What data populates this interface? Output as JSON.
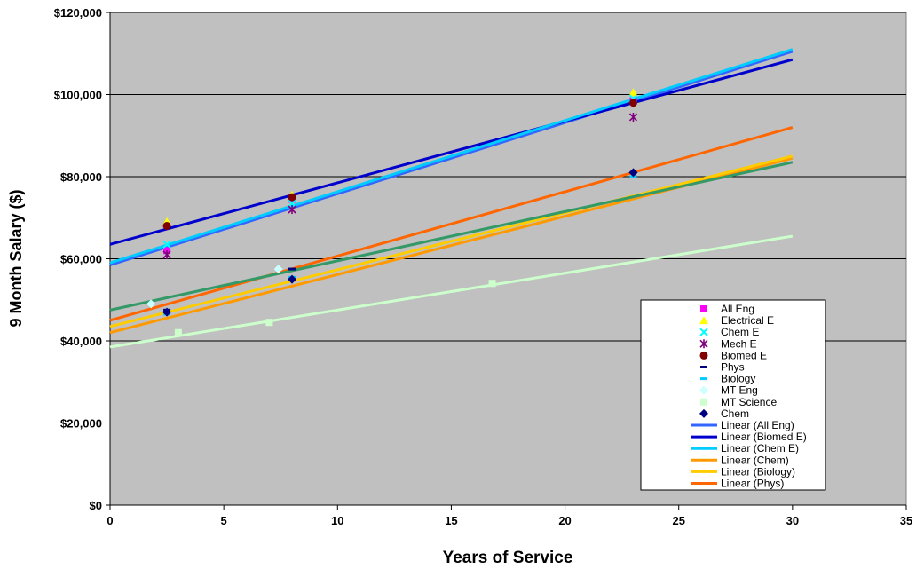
{
  "chart_data": {
    "type": "scatter",
    "title": "",
    "xlabel": "Years of Service",
    "ylabel": "9 Month Salary ($)",
    "xlim": [
      0,
      35
    ],
    "ylim": [
      0,
      120000
    ],
    "x_ticks": [
      0,
      5,
      10,
      15,
      20,
      25,
      30,
      35
    ],
    "y_ticks": [
      0,
      20000,
      40000,
      60000,
      80000,
      100000,
      120000
    ],
    "x_tick_labels": [
      "0",
      "5",
      "10",
      "15",
      "20",
      "25",
      "30",
      "35"
    ],
    "y_tick_labels": [
      "$0",
      "$20,000",
      "$40,000",
      "$60,000",
      "$80,000",
      "$100,000",
      "$120,000"
    ],
    "grid": "horizontal",
    "plot_background": "#c0c0c0",
    "legend_position": "right",
    "series": [
      {
        "name": "All Eng",
        "marker": "square",
        "color": "#ff00ff",
        "points": [
          [
            2.5,
            62000
          ],
          [
            8,
            74500
          ],
          [
            23,
            98500
          ]
        ]
      },
      {
        "name": "Electrical E",
        "marker": "triangle",
        "color": "#ffff00",
        "points": [
          [
            2.5,
            69000
          ],
          [
            8,
            75500
          ],
          [
            23,
            100500
          ]
        ]
      },
      {
        "name": "Chem E",
        "marker": "x",
        "color": "#00ffff",
        "points": [
          [
            2.5,
            63500
          ],
          [
            8,
            73500
          ],
          [
            23,
            99000
          ]
        ]
      },
      {
        "name": "Mech E",
        "marker": "star",
        "color": "#800080",
        "points": [
          [
            2.5,
            61000
          ],
          [
            8,
            72000
          ],
          [
            23,
            94500
          ]
        ]
      },
      {
        "name": "Biomed E",
        "marker": "circle",
        "color": "#800000",
        "points": [
          [
            2.5,
            68000
          ],
          [
            8,
            75000
          ],
          [
            23,
            98000
          ]
        ]
      },
      {
        "name": "Phys",
        "marker": "dash",
        "color": "#000080",
        "points": [
          [
            2.5,
            47500
          ],
          [
            8,
            57500
          ],
          [
            23,
            81000
          ]
        ]
      },
      {
        "name": "Biology",
        "marker": "dash",
        "color": "#00ccff",
        "points": [
          [
            2.5,
            46500
          ],
          [
            8,
            55500
          ],
          [
            23,
            80000
          ]
        ]
      },
      {
        "name": "MT Eng",
        "marker": "diamond",
        "color": "#ccffff",
        "points": [
          [
            1.8,
            49000
          ],
          [
            7.4,
            57500
          ]
        ]
      },
      {
        "name": "MT Science",
        "marker": "square",
        "color": "#ccffcc",
        "points": [
          [
            3,
            42000
          ],
          [
            7,
            44500
          ],
          [
            16.8,
            54000
          ]
        ]
      },
      {
        "name": "Chem",
        "marker": "diamond",
        "color": "#000080",
        "points": [
          [
            2.5,
            47000
          ],
          [
            8,
            55000
          ],
          [
            23,
            81000
          ]
        ]
      }
    ],
    "trendlines": [
      {
        "name": "Linear (All Eng)",
        "color": "#3366ff",
        "x": [
          0,
          30
        ],
        "y": [
          58500,
          110500
        ],
        "in_legend": true
      },
      {
        "name": "Linear (Biomed E)",
        "color": "#0000cc",
        "x": [
          0,
          30
        ],
        "y": [
          63500,
          108500
        ],
        "in_legend": true
      },
      {
        "name": "Linear (Chem E)",
        "color": "#00ccff",
        "x": [
          0,
          30
        ],
        "y": [
          59000,
          111000
        ],
        "in_legend": true
      },
      {
        "name": "Linear (Chem)",
        "color": "#ff9900",
        "x": [
          0,
          30
        ],
        "y": [
          42000,
          84500
        ],
        "in_legend": true
      },
      {
        "name": "Linear (Biology)",
        "color": "#ffcc00",
        "x": [
          0,
          30
        ],
        "y": [
          43500,
          85000
        ],
        "in_legend": true
      },
      {
        "name": "Linear (Phys)",
        "color": "#ff6600",
        "x": [
          0,
          30
        ],
        "y": [
          45000,
          92000
        ],
        "in_legend": true
      },
      {
        "name": "",
        "color": "#339966",
        "x": [
          0,
          30
        ],
        "y": [
          47500,
          83500
        ],
        "in_legend": false
      },
      {
        "name": "",
        "color": "#ccffcc",
        "x": [
          0,
          30
        ],
        "y": [
          38500,
          65500
        ],
        "in_legend": false
      }
    ]
  }
}
